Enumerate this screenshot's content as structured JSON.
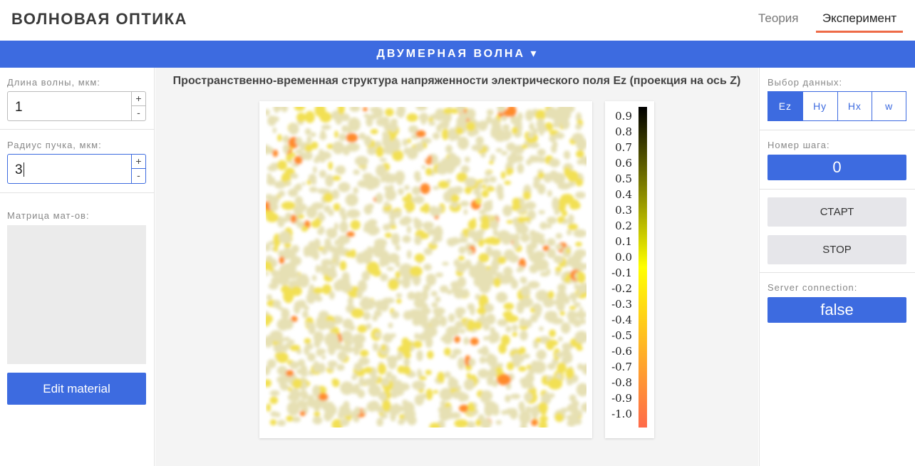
{
  "header": {
    "title": "ВОЛНОВАЯ ОПТИКА",
    "tabs": [
      {
        "label": "Теория",
        "active": false
      },
      {
        "label": "Эксперимент",
        "active": true
      }
    ]
  },
  "subheader": {
    "label": "ДВУМЕРНАЯ ВОЛНА ▾"
  },
  "left": {
    "wavelength_label": "Длина волны, мкм:",
    "wavelength_value": "1",
    "radius_label": "Радиус пучка, мкм:",
    "radius_value": "3",
    "spin_up": "+",
    "spin_down": "-",
    "matrix_label": "Матрица мат-ов:",
    "edit_button": "Edit material"
  },
  "main": {
    "title": "Пространственно-временная структура напряженности электрического поля Ez (проекция на ось Z)"
  },
  "right": {
    "data_select_label": "Выбор данных:",
    "data_options": [
      "Ez",
      "Hy",
      "Hx",
      "w"
    ],
    "selected_option": "Ez",
    "step_label": "Номер шага:",
    "step_value": "0",
    "start_button": "СТАРТ",
    "stop_button": "STOP",
    "server_label": "Server connection:",
    "server_value": "false"
  },
  "colors": {
    "accent": "#3d6be0",
    "tab_underline": "#ee6b47",
    "speckle_dim": "#e6e0b4",
    "speckle_mid": "#f2e052",
    "speckle_hot": "#ff8a2a"
  },
  "chart_data": {
    "type": "heatmap",
    "title": "Пространственно-временная структура напряженности электрического поля Ez (проекция на ось Z)",
    "colorbar_ticks": [
      "0.9",
      "0.8",
      "0.7",
      "0.6",
      "0.5",
      "0.4",
      "0.3",
      "0.2",
      "0.1",
      "0.0",
      "-0.1",
      "-0.2",
      "-0.3",
      "-0.4",
      "-0.5",
      "-0.6",
      "-0.7",
      "-0.8",
      "-0.9",
      "-1.0"
    ],
    "colorbar_range": [
      -1.0,
      1.0
    ],
    "colorbar_stops": [
      "#000000",
      "#ffff00",
      "#ff6a4a"
    ],
    "field": "Ez"
  }
}
